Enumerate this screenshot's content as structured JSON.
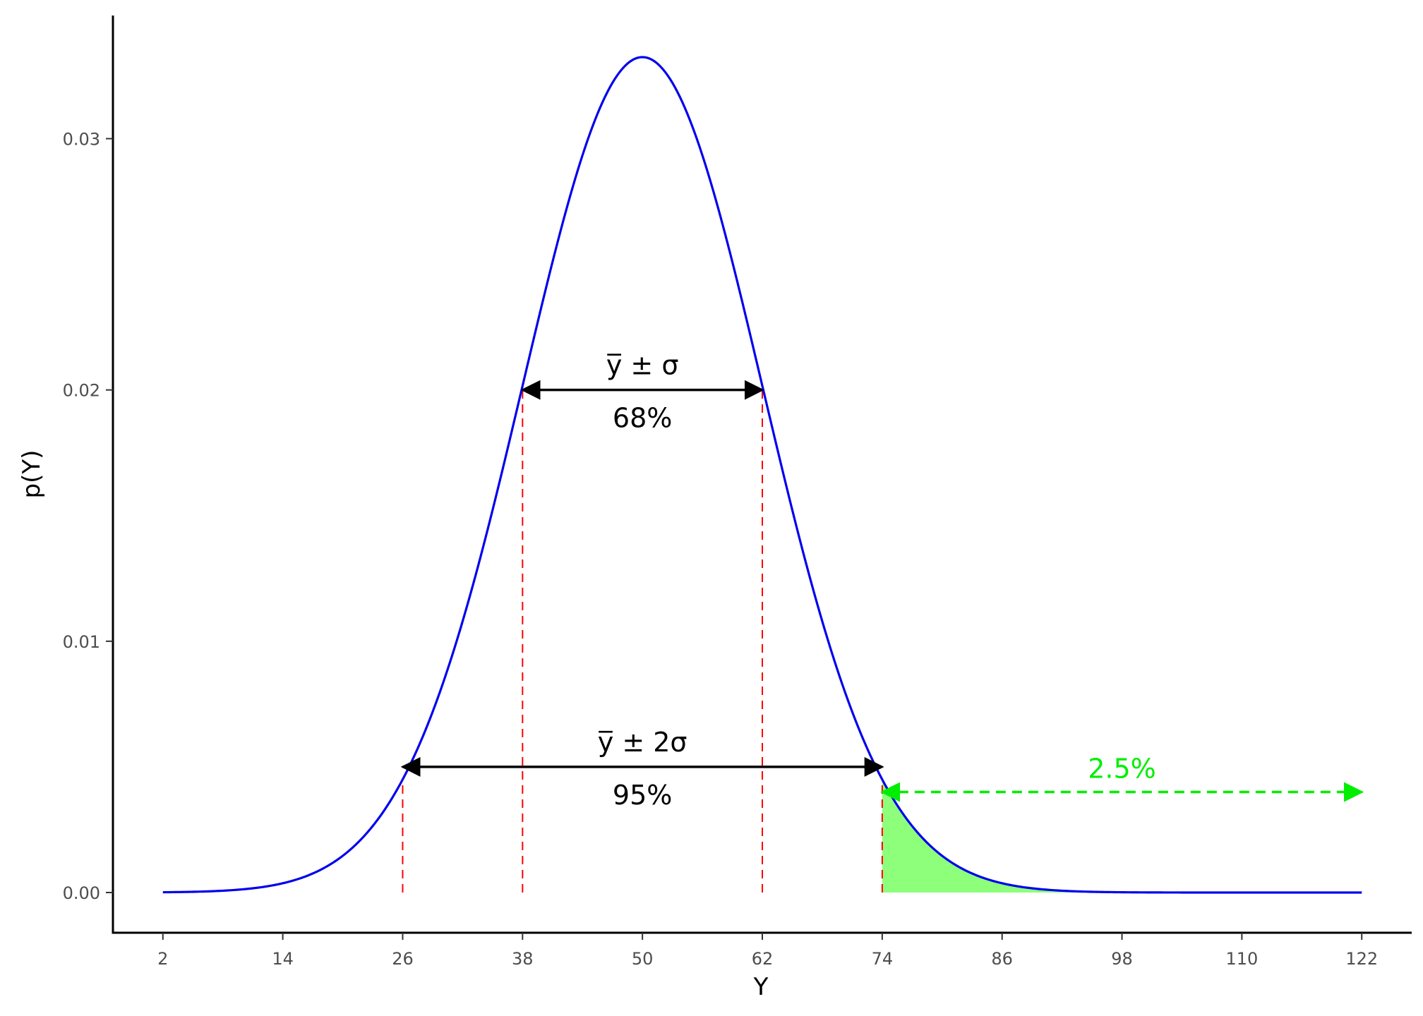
{
  "chart_data": {
    "type": "line",
    "distribution": {
      "mean": 50,
      "sd": 12
    },
    "x": {
      "label": "Y",
      "lim": [
        -3,
        127
      ],
      "ticks": [
        2,
        14,
        26,
        38,
        50,
        62,
        74,
        86,
        98,
        110,
        122
      ]
    },
    "y": {
      "label": "p(Y)",
      "lim": [
        -0.0016,
        0.0349
      ],
      "ticks": [
        0.0,
        0.01,
        0.02,
        0.03
      ],
      "tick_labels": [
        "0.00",
        "0.01",
        "0.02",
        "0.03"
      ]
    },
    "curve": {
      "x_start": 2,
      "x_end": 122,
      "color": "#0000ee"
    },
    "reference_lines": {
      "x": [
        26,
        38,
        62,
        74
      ],
      "color": "#ff0000",
      "style": "dashed"
    },
    "shaded_region": {
      "x_start": 74,
      "x_end": 122,
      "color": "#8dff7b"
    },
    "annotations": {
      "one_sigma": {
        "x_from": 38,
        "x_to": 62,
        "y": 0.02,
        "label_top": "y̅ ± σ",
        "label_bottom": "68%",
        "color": "#000000"
      },
      "two_sigma": {
        "x_from": 26,
        "x_to": 74,
        "y": 0.005,
        "label_top": "y̅ ± 2σ",
        "label_bottom": "95%",
        "color": "#000000"
      },
      "tail": {
        "x_from": 74,
        "x_to": 122,
        "y": 0.004,
        "label": "2.5%",
        "color": "#00ee00",
        "style": "dashed"
      }
    },
    "grid": false,
    "legend": "none"
  }
}
